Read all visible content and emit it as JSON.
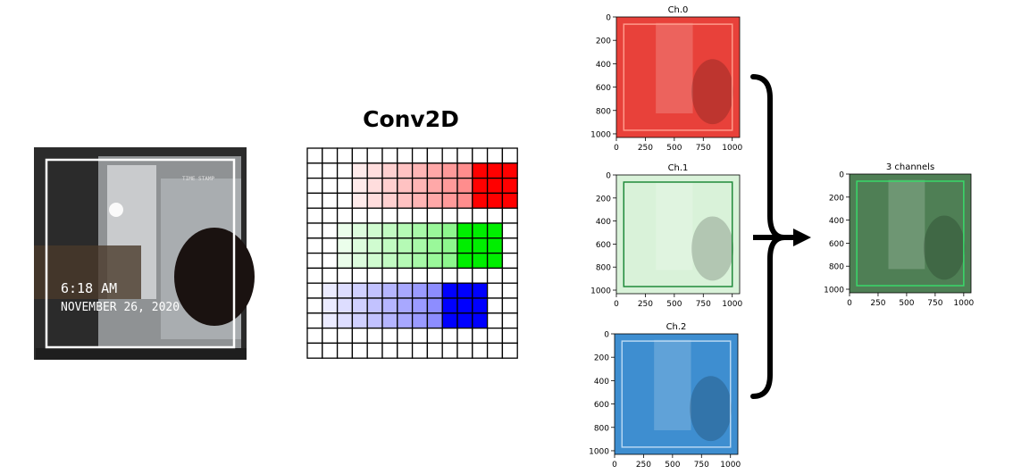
{
  "title": "Conv2D",
  "photo": {
    "time": "6:18 AM",
    "date": "NOVEMBER 26, 2020",
    "stamp": "TIME STAMP"
  },
  "grid": {
    "cols": 14,
    "rows": 14,
    "bands": [
      {
        "name": "red",
        "color": "#ff0000",
        "rows": [
          1,
          3
        ],
        "col_start": 3,
        "col_end": 13,
        "solid_from": 11
      },
      {
        "name": "green",
        "color": "#00ee00",
        "rows": [
          5,
          7
        ],
        "col_start": 2,
        "col_end": 12,
        "solid_from": 10
      },
      {
        "name": "blue",
        "color": "#0000ff",
        "rows": [
          9,
          11
        ],
        "col_start": 1,
        "col_end": 11,
        "solid_from": 9
      }
    ]
  },
  "channel_plots": [
    {
      "title": "Ch.0",
      "tint": "#e8413a",
      "frame": "#ff9a8a",
      "xticks": [
        "0",
        "250",
        "500",
        "750",
        "1000"
      ],
      "yticks": [
        "0",
        "200",
        "400",
        "600",
        "800",
        "1000"
      ]
    },
    {
      "title": "Ch.1",
      "tint": "#d9f2d9",
      "frame": "#1f8a3a",
      "xticks": [
        "0",
        "250",
        "500",
        "750",
        "1000"
      ],
      "yticks": [
        "0",
        "200",
        "400",
        "600",
        "800",
        "1000"
      ]
    },
    {
      "title": "Ch.2",
      "tint": "#3e8ed0",
      "frame": "#b7d7f2",
      "xticks": [
        "0",
        "250",
        "500",
        "750",
        "1000"
      ],
      "yticks": [
        "0",
        "200",
        "400",
        "600",
        "800",
        "1000"
      ]
    }
  ],
  "combined_plot": {
    "title": "3 channels",
    "tint": "#4f7f55",
    "frame": "#39d96a",
    "xticks": [
      "0",
      "250",
      "500",
      "750",
      "1000"
    ],
    "yticks": [
      "0",
      "200",
      "400",
      "600",
      "800",
      "1000"
    ]
  }
}
